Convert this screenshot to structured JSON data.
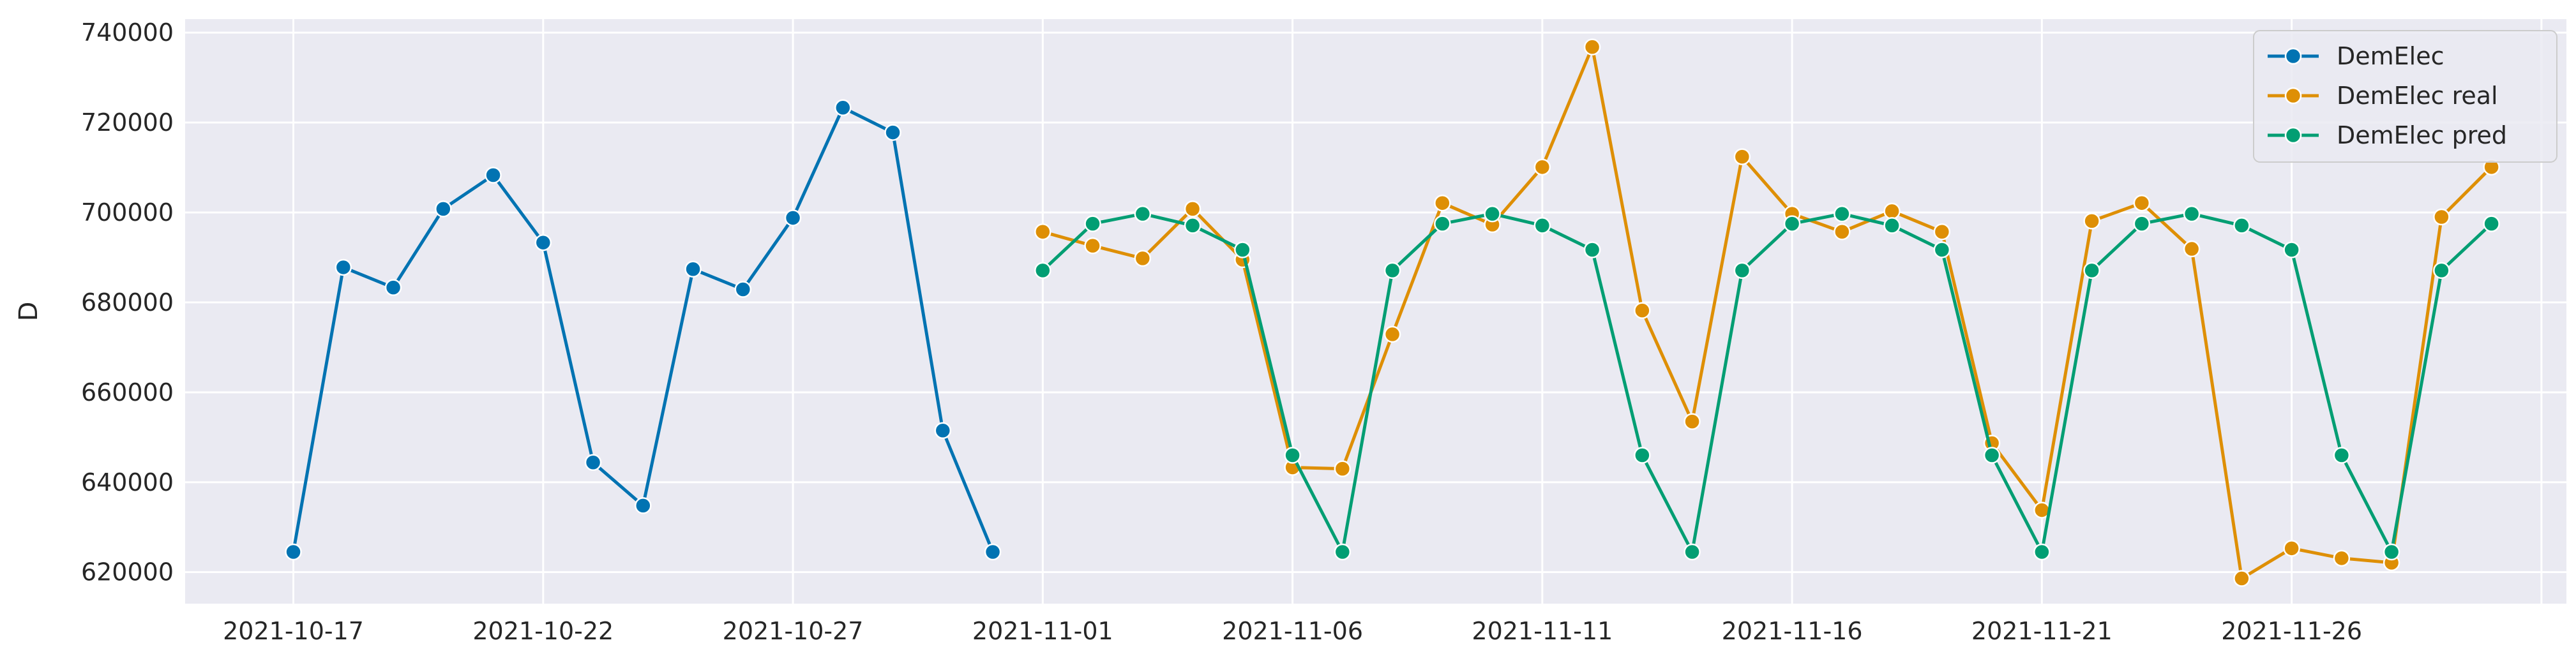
{
  "chart_data": {
    "type": "line",
    "title": "",
    "xlabel": "",
    "ylabel": "D",
    "x_ticks": [
      "2021-10-17",
      "2021-10-22",
      "2021-10-27",
      "2021-11-01",
      "2021-11-06",
      "2021-11-11",
      "2021-11-16",
      "2021-11-21",
      "2021-11-26"
    ],
    "y_ticks": [
      "620000",
      "640000",
      "660000",
      "680000",
      "700000",
      "720000",
      "740000"
    ],
    "xlim": [
      "2021-10-14T20:00",
      "2021-12-01T12:00"
    ],
    "ylim": [
      613000,
      743000
    ],
    "grid": true,
    "legend_position": "top-right",
    "background": "#eaeaf2",
    "series": [
      {
        "name": "DemElec",
        "color": "#0173b2",
        "x": [
          "2021-10-17",
          "2021-10-18",
          "2021-10-19",
          "2021-10-20",
          "2021-10-21",
          "2021-10-22",
          "2021-10-23",
          "2021-10-24",
          "2021-10-25",
          "2021-10-26",
          "2021-10-27",
          "2021-10-28",
          "2021-10-29",
          "2021-10-30",
          "2021-10-31"
        ],
        "y": [
          624500,
          687800,
          683300,
          700800,
          708300,
          693300,
          644400,
          634800,
          687400,
          682900,
          698800,
          723300,
          717800,
          651500,
          624500
        ]
      },
      {
        "name": "DemElec real",
        "color": "#de8f05",
        "x": [
          "2021-11-01",
          "2021-11-02",
          "2021-11-03",
          "2021-11-04",
          "2021-11-05",
          "2021-11-06",
          "2021-11-07",
          "2021-11-08",
          "2021-11-09",
          "2021-11-10",
          "2021-11-11",
          "2021-11-12",
          "2021-11-13",
          "2021-11-14",
          "2021-11-15",
          "2021-11-16",
          "2021-11-17",
          "2021-11-18",
          "2021-11-19",
          "2021-11-20",
          "2021-11-21",
          "2021-11-22",
          "2021-11-23",
          "2021-11-24",
          "2021-11-25",
          "2021-11-26",
          "2021-11-27",
          "2021-11-28",
          "2021-11-29",
          "2021-11-30"
        ],
        "y": [
          695700,
          692600,
          689800,
          700800,
          689500,
          643300,
          643000,
          672900,
          702100,
          697300,
          710100,
          736800,
          678200,
          653500,
          712400,
          699700,
          695700,
          700300,
          695700,
          648700,
          633800,
          698100,
          702100,
          691900,
          618600,
          625300,
          623100,
          622100,
          699000,
          710100
        ]
      },
      {
        "name": "DemElec pred",
        "color": "#029e73",
        "x": [
          "2021-11-01",
          "2021-11-02",
          "2021-11-03",
          "2021-11-04",
          "2021-11-05",
          "2021-11-06",
          "2021-11-07",
          "2021-11-08",
          "2021-11-09",
          "2021-11-10",
          "2021-11-11",
          "2021-11-12",
          "2021-11-13",
          "2021-11-14",
          "2021-11-15",
          "2021-11-16",
          "2021-11-17",
          "2021-11-18",
          "2021-11-19",
          "2021-11-20",
          "2021-11-21",
          "2021-11-22",
          "2021-11-23",
          "2021-11-24",
          "2021-11-25",
          "2021-11-26",
          "2021-11-27",
          "2021-11-28",
          "2021-11-29",
          "2021-11-30"
        ],
        "y": [
          687100,
          697500,
          699700,
          697100,
          691700,
          646000,
          624500,
          687100,
          697500,
          699700,
          697100,
          691700,
          646000,
          624500,
          687100,
          697500,
          699700,
          697100,
          691700,
          646000,
          624500,
          687100,
          697500,
          699700,
          697100,
          691700,
          646000,
          624500,
          687100,
          697500
        ]
      }
    ]
  }
}
